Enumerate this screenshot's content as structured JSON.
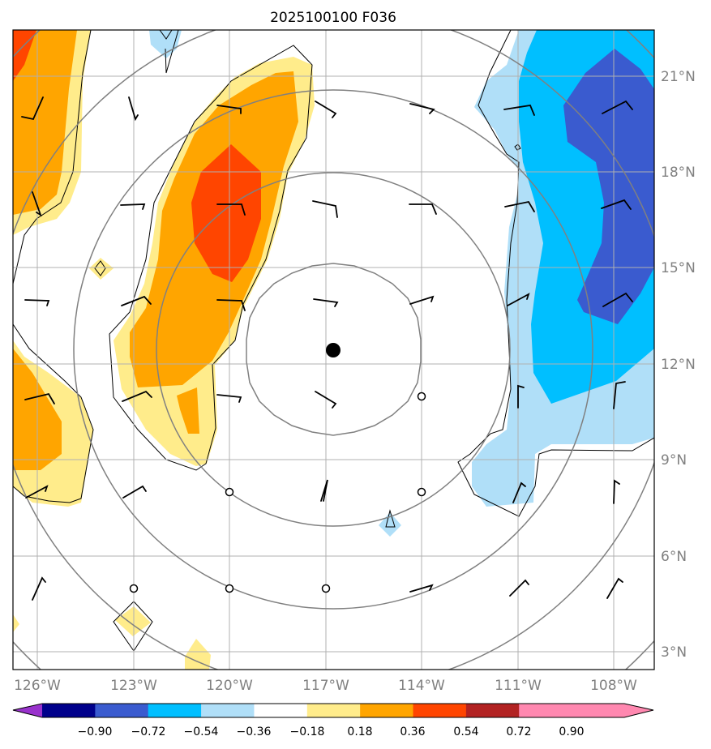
{
  "title": "2025100100 F036",
  "map": {
    "lat_labels": [
      "21°N",
      "18°N",
      "15°N",
      "12°N",
      "9°N",
      "6°N",
      "3°N"
    ],
    "lon_labels": [
      "126°W",
      "123°W",
      "120°W",
      "117°W",
      "114°W",
      "111°W",
      "108°W"
    ],
    "center": {
      "lon": -116.8,
      "lat": 12.4
    }
  },
  "colorbar": {
    "labels": [
      "−0.90",
      "−0.72",
      "−0.54",
      "−0.36",
      "−0.18",
      "0.18",
      "0.36",
      "0.54",
      "0.72",
      "0.90"
    ],
    "colors": [
      "#9932cc",
      "#00008b",
      "#3a5bcf",
      "#00bfff",
      "#b0dff8",
      "#ffffff",
      "#ffec8b",
      "#ffa500",
      "#ff4500",
      "#b22222",
      "#ff88b0"
    ]
  },
  "colors": {
    "orange_red": "#ff4500",
    "orange": "#ffa500",
    "light_yellow": "#ffec8b",
    "light_blue": "#b0dff8",
    "deep_sky_blue": "#00bfff",
    "royal_blue": "#3a5bcf",
    "grid": "#b0b0b0",
    "range_rings": "#808080"
  }
}
